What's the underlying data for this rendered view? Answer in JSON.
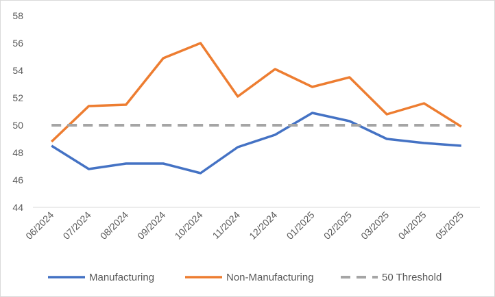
{
  "chart_data": {
    "type": "line",
    "title": "",
    "xlabel": "",
    "ylabel": "",
    "ylim": [
      44,
      58
    ],
    "yticks": [
      44,
      46,
      48,
      50,
      52,
      54,
      56,
      58
    ],
    "categories": [
      "06/2024",
      "07/2024",
      "08/2024",
      "09/2024",
      "10/2024",
      "11/2024",
      "12/2024",
      "01/2025",
      "02/2025",
      "03/2025",
      "04/2025",
      "05/2025"
    ],
    "grid": false,
    "legend_position": "bottom",
    "series": [
      {
        "name": "Manufacturing",
        "color": "#4472c4",
        "style": "solid",
        "values": [
          48.5,
          46.8,
          47.2,
          47.2,
          46.5,
          48.4,
          49.3,
          50.9,
          50.3,
          49.0,
          48.7,
          48.5
        ]
      },
      {
        "name": "Non-Manufacturing",
        "color": "#ed7d31",
        "style": "solid",
        "values": [
          48.8,
          51.4,
          51.5,
          54.9,
          56.0,
          52.1,
          54.1,
          52.8,
          53.5,
          50.8,
          51.6,
          49.9
        ]
      },
      {
        "name": "50 Threshold",
        "color": "#a5a5a5",
        "style": "dashed",
        "values": [
          50,
          50,
          50,
          50,
          50,
          50,
          50,
          50,
          50,
          50,
          50,
          50
        ]
      }
    ]
  }
}
